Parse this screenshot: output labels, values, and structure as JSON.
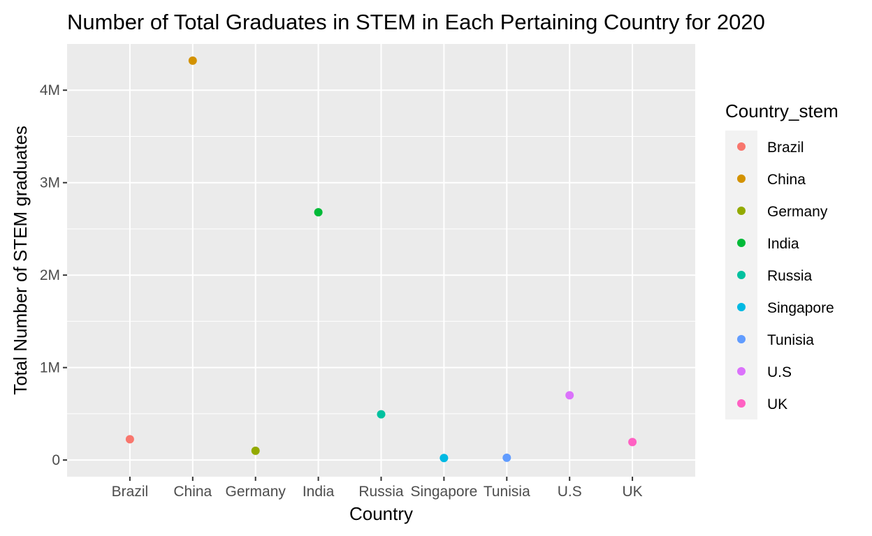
{
  "chart_data": {
    "type": "scatter",
    "title": "Number of Total Graduates in STEM in Each Pertaining Country for 2020",
    "xlabel": "Country",
    "ylabel": "Total Number of STEM graduates",
    "categories": [
      "Brazil",
      "China",
      "Germany",
      "India",
      "Russia",
      "Singapore",
      "Tunisia",
      "U.S",
      "UK"
    ],
    "values": [
      225000,
      4320000,
      100000,
      2680000,
      495000,
      22000,
      25000,
      700000,
      195000
    ],
    "colors": [
      "#F8766D",
      "#D39200",
      "#93AA00",
      "#00BA38",
      "#00C19F",
      "#00B9E3",
      "#619CFF",
      "#DB72FB",
      "#FF61C3"
    ],
    "ylim": [
      -180000,
      4500000
    ],
    "yticks": [
      0,
      1000000,
      2000000,
      3000000,
      4000000
    ],
    "ytick_labels": [
      "0",
      "1M",
      "2M",
      "3M",
      "4M"
    ],
    "grid": true,
    "legend": {
      "title": "Country_stem",
      "placement": "right",
      "entries": [
        "Brazil",
        "China",
        "Germany",
        "India",
        "Russia",
        "Singapore",
        "Tunisia",
        "U.S",
        "UK"
      ]
    }
  }
}
